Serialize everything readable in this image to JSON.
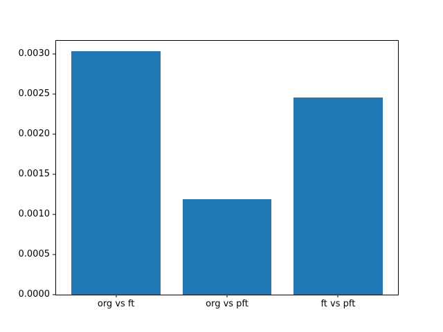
{
  "figure": {
    "background_color": "#ffffff",
    "text_color": "#000000",
    "spine_color": "#000000"
  },
  "chart_data": {
    "type": "bar",
    "title": "",
    "xlabel": "",
    "ylabel": "",
    "categories": [
      "org vs ft",
      "org vs pft",
      "ft vs pft"
    ],
    "values": [
      0.00303,
      0.00119,
      0.00245
    ],
    "bar_color": "#1f77b4",
    "bar_width_data_units": 0.8,
    "xlim": [
      -0.54,
      2.54
    ],
    "ylim": [
      0,
      0.00316
    ],
    "y_ticks": [
      0.0,
      0.0005,
      0.001,
      0.0015,
      0.002,
      0.0025,
      0.003
    ],
    "y_tick_labels": [
      "0.0000",
      "0.0005",
      "0.0010",
      "0.0015",
      "0.0020",
      "0.0025",
      "0.0030"
    ],
    "grid": false,
    "legend": null
  }
}
